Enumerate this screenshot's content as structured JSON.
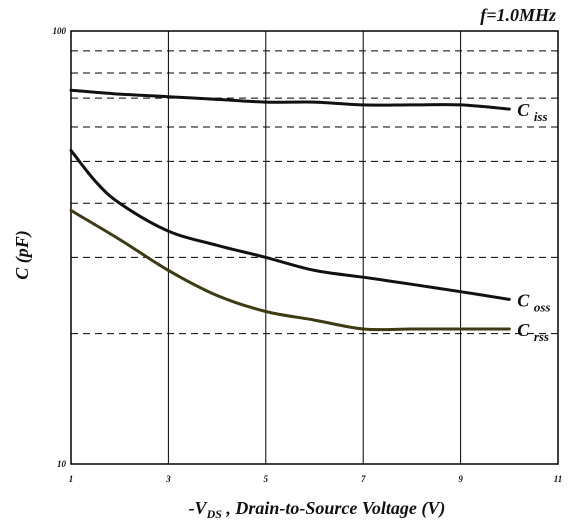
{
  "chart_data": {
    "type": "line",
    "annotation": "f=1.0MHz",
    "xlabel_parts": {
      "prefix": "-V",
      "sub": "DS",
      "suffix": " , Drain-to-Source Voltage (V)"
    },
    "ylabel": "C (pF)",
    "xlim": [
      1,
      11
    ],
    "ylim": [
      10,
      100
    ],
    "yscale": "log",
    "x_ticks": [
      "1",
      "3",
      "5",
      "7",
      "9",
      "11"
    ],
    "y_ticks": [
      "10",
      "100"
    ],
    "grid": true,
    "series": [
      {
        "name_main": "C",
        "name_sub": "iss",
        "color": "#111111",
        "points": [
          [
            1,
            73
          ],
          [
            2,
            71.5
          ],
          [
            3,
            70.5
          ],
          [
            4,
            69.5
          ],
          [
            5,
            68.5
          ],
          [
            6,
            68.5
          ],
          [
            7,
            67.5
          ],
          [
            8,
            67.5
          ],
          [
            9,
            67.5
          ],
          [
            10,
            66
          ]
        ]
      },
      {
        "name_main": "C",
        "name_sub": "oss",
        "color": "#111111",
        "points": [
          [
            1,
            53
          ],
          [
            1.5,
            45
          ],
          [
            2,
            40
          ],
          [
            3,
            34.5
          ],
          [
            4,
            32
          ],
          [
            5,
            30
          ],
          [
            6,
            28
          ],
          [
            7,
            27
          ],
          [
            8,
            26
          ],
          [
            9,
            25
          ],
          [
            10,
            24
          ]
        ]
      },
      {
        "name_main": "C",
        "name_sub": "rss",
        "color": "#3d3a14",
        "points": [
          [
            1,
            38.5
          ],
          [
            2,
            33
          ],
          [
            3,
            28
          ],
          [
            4,
            24.5
          ],
          [
            5,
            22.5
          ],
          [
            6,
            21.5
          ],
          [
            7,
            20.5
          ],
          [
            8,
            20.5
          ],
          [
            9,
            20.5
          ],
          [
            10,
            20.5
          ]
        ]
      }
    ]
  }
}
